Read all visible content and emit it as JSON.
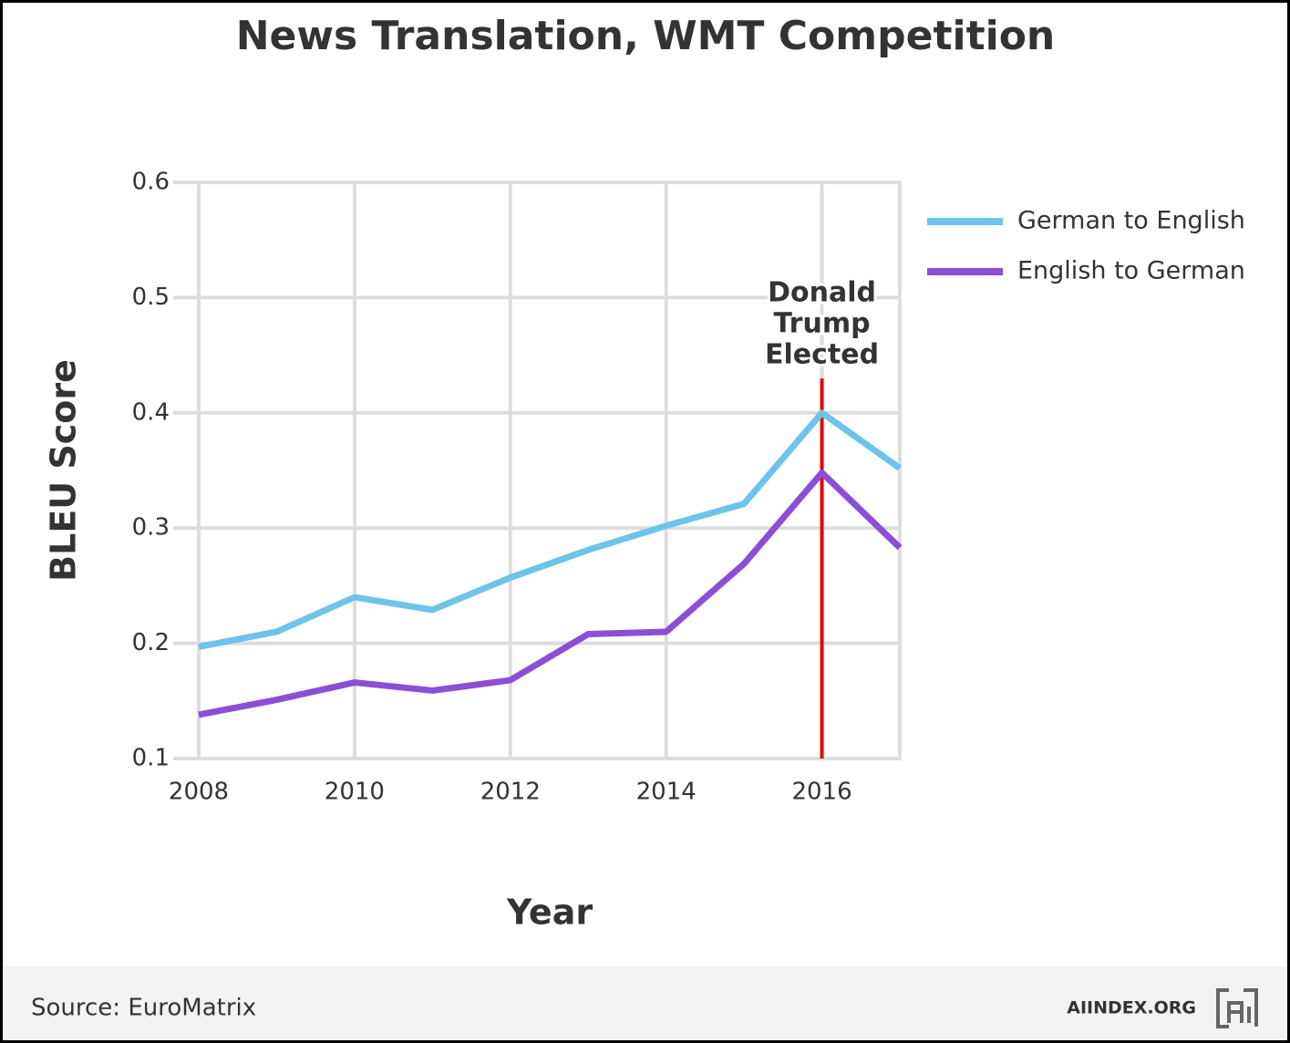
{
  "chart_data": {
    "type": "line",
    "title": "News Translation, WMT Competition",
    "x_label": "Year",
    "y_label": "BLEU Score",
    "x": [
      2008,
      2009,
      2010,
      2011,
      2012,
      2013,
      2014,
      2015,
      2016,
      2017
    ],
    "series": [
      {
        "name": "German to English",
        "color": "#6ec3ea",
        "values": [
          0.197,
          0.21,
          0.24,
          0.229,
          0.257,
          0.281,
          0.302,
          0.321,
          0.4,
          0.352
        ]
      },
      {
        "name": "English to German",
        "color": "#8a4fd6",
        "values": [
          0.138,
          0.151,
          0.166,
          0.159,
          0.168,
          0.208,
          0.21,
          0.269,
          0.348,
          0.283
        ]
      }
    ],
    "xlim": [
      2008,
      2017
    ],
    "ylim": [
      0.1,
      0.6
    ],
    "xticks": [
      2008,
      2010,
      2012,
      2014,
      2016
    ],
    "yticks": [
      0.1,
      0.2,
      0.3,
      0.4,
      0.5,
      0.6
    ],
    "grid": true,
    "legend": "right",
    "annotation": {
      "lines": [
        "Donald",
        "Trump",
        "Elected"
      ],
      "x": 2016,
      "color": "#e8000b"
    },
    "source": "Source: EuroMatrix",
    "brand": "AIINDEX.ORG"
  }
}
